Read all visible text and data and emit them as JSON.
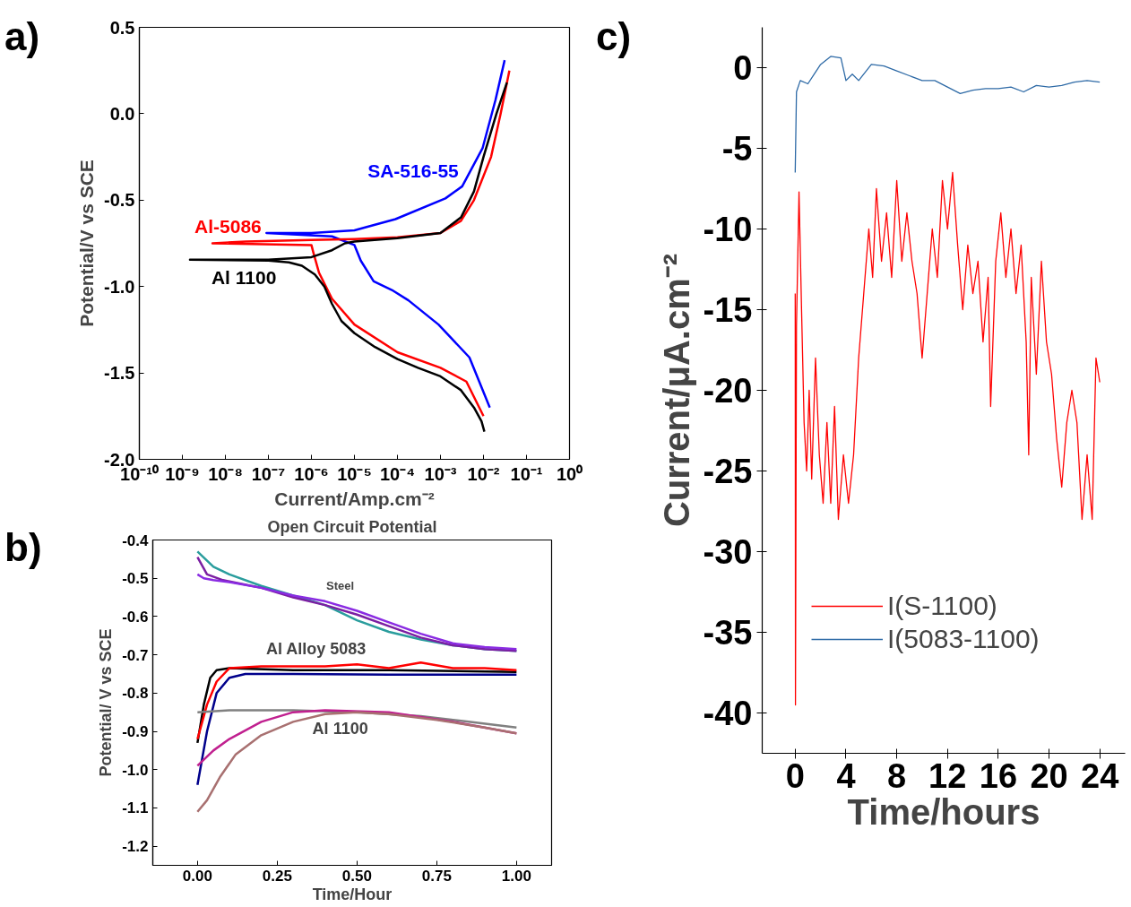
{
  "chart_data": [
    {
      "type": "line",
      "xlabel": "Current/Amp.cm⁻²",
      "ylabel": "Potential/V vs SCE",
      "log": "x",
      "annotations": [
        "a)"
      ],
      "xlim": [
        1e-10,
        1
      ],
      "ylim": [
        -2.0,
        0.5
      ],
      "xticks": [
        {
          "value": 1e-10,
          "label": "10⁻¹⁰"
        },
        {
          "value": 1e-09,
          "label": "10⁻⁹"
        },
        {
          "value": 1e-08,
          "label": "10⁻⁸"
        },
        {
          "value": 1e-07,
          "label": "10⁻⁷"
        },
        {
          "value": 1e-06,
          "label": "10⁻⁶"
        },
        {
          "value": 1e-05,
          "label": "10⁻⁵"
        },
        {
          "value": 0.0001,
          "label": "10⁻⁴"
        },
        {
          "value": 0.001,
          "label": "10⁻³"
        },
        {
          "value": 0.01,
          "label": "10⁻²"
        },
        {
          "value": 0.1,
          "label": "10⁻¹"
        },
        {
          "value": 1,
          "label": "10⁰"
        }
      ],
      "yticks": [
        {
          "value": 0.5,
          "label": "0.5"
        },
        {
          "value": 0.0,
          "label": "0.0"
        },
        {
          "value": -0.5,
          "label": "-0.5"
        },
        {
          "value": -1.0,
          "label": "-1.0"
        },
        {
          "value": -1.5,
          "label": "-1.5"
        },
        {
          "value": -2.0,
          "label": "-2.0"
        }
      ],
      "series": [
        {
          "name": "SA-516-55",
          "color": "#0000ff",
          "x": [
            0.014,
            0.0047,
            0.0009,
            0.00018,
            7.4e-05,
            2.8e-05,
            1.4e-05,
            1e-05,
            3e-06,
            9e-08,
            1e-06,
            1e-05,
            9e-05,
            0.0013,
            0.0032,
            0.0095,
            0.019,
            0.031
          ],
          "values": [
            -1.7,
            -1.41,
            -1.22,
            -1.08,
            -1.02,
            -0.97,
            -0.85,
            -0.76,
            -0.71,
            -0.69,
            -0.69,
            -0.675,
            -0.61,
            -0.49,
            -0.42,
            -0.2,
            0.08,
            0.31
          ]
        },
        {
          "name": "Al-5086",
          "color": "#ff0000",
          "x": [
            0.01,
            0.004,
            0.001,
            0.0001,
            1e-05,
            3e-06,
            1.5e-06,
            1.1e-06,
            1e-06,
            5e-09,
            3e-08,
            1e-06,
            1e-05,
            0.0001,
            0.001,
            0.003,
            0.006,
            0.015,
            0.025,
            0.04
          ],
          "values": [
            -1.75,
            -1.55,
            -1.47,
            -1.38,
            -1.22,
            -1.07,
            -0.92,
            -0.8,
            -0.76,
            -0.75,
            -0.74,
            -0.73,
            -0.725,
            -0.715,
            -0.69,
            -0.62,
            -0.5,
            -0.25,
            0.0,
            0.25
          ]
        },
        {
          "name": "Al 1100",
          "color": "#000000",
          "x": [
            0.0105,
            0.009,
            0.006,
            0.003,
            0.001,
            0.0003,
            0.0001,
            3e-05,
            1e-05,
            5e-06,
            3e-06,
            2e-06,
            1.2e-06,
            6e-07,
            3e-07,
            1e-07,
            1.5e-09,
            1e-07,
            1e-06,
            3e-06,
            6e-06,
            1e-05,
            0.0001,
            0.001,
            0.003,
            0.006,
            0.01,
            0.02,
            0.035
          ],
          "values": [
            -1.84,
            -1.78,
            -1.7,
            -1.6,
            -1.52,
            -1.47,
            -1.42,
            -1.35,
            -1.27,
            -1.2,
            -1.1,
            -1.0,
            -0.93,
            -0.88,
            -0.86,
            -0.85,
            -0.845,
            -0.845,
            -0.83,
            -0.79,
            -0.75,
            -0.74,
            -0.72,
            -0.69,
            -0.6,
            -0.45,
            -0.25,
            0.0,
            0.18
          ]
        }
      ]
    },
    {
      "type": "line",
      "title": "Open Circuit Potential",
      "xlabel": "Time/Hour",
      "ylabel": "Potential/ V vs SCE",
      "annotations": [
        "b)",
        "Steel",
        "Al Alloy 5083",
        "Al 1100"
      ],
      "xlim": [
        -0.14,
        1.11
      ],
      "ylim": [
        -1.25,
        -0.4
      ],
      "xticks": [
        {
          "value": 0,
          "label": "0.00"
        },
        {
          "value": 0.25,
          "label": "0.25"
        },
        {
          "value": 0.5,
          "label": "0.50"
        },
        {
          "value": 0.75,
          "label": "0.75"
        },
        {
          "value": 1,
          "label": "1.00"
        }
      ],
      "yticks": [
        -0.4,
        -0.5,
        -0.6,
        -0.7,
        -0.8,
        -0.9,
        {
          "value": -1.0,
          "label": "-1.0"
        },
        -1.1,
        -1.2
      ],
      "series": [
        {
          "color": "#2a9d9d",
          "x": [
            0,
            0.05,
            0.1,
            0.2,
            0.3,
            0.4,
            0.5,
            0.6,
            0.7,
            0.8,
            0.9,
            1.0
          ],
          "values": [
            -0.43,
            -0.47,
            -0.49,
            -0.52,
            -0.545,
            -0.57,
            -0.61,
            -0.64,
            -0.66,
            -0.675,
            -0.685,
            -0.69
          ]
        },
        {
          "color": "#7b1fa2",
          "x": [
            0,
            0.03,
            0.08,
            0.2,
            0.3,
            0.4,
            0.5,
            0.6,
            0.7,
            0.8,
            0.9,
            1.0
          ],
          "values": [
            -0.445,
            -0.49,
            -0.505,
            -0.525,
            -0.55,
            -0.57,
            -0.595,
            -0.625,
            -0.655,
            -0.675,
            -0.685,
            -0.69
          ]
        },
        {
          "color": "#8a2be2",
          "x": [
            0,
            0.02,
            0.05,
            0.1,
            0.2,
            0.3,
            0.4,
            0.5,
            0.6,
            0.7,
            0.8,
            0.9,
            1.0
          ],
          "values": [
            -0.49,
            -0.5,
            -0.505,
            -0.51,
            -0.525,
            -0.545,
            -0.56,
            -0.585,
            -0.615,
            -0.645,
            -0.67,
            -0.68,
            -0.685
          ]
        },
        {
          "color": "#000000",
          "x": [
            0,
            0.02,
            0.04,
            0.06,
            0.1,
            0.3,
            0.6,
            1.0
          ],
          "values": [
            -0.93,
            -0.83,
            -0.76,
            -0.74,
            -0.735,
            -0.74,
            -0.74,
            -0.745
          ]
        },
        {
          "color": "#ff0000",
          "x": [
            0,
            0.03,
            0.06,
            0.1,
            0.2,
            0.4,
            0.5,
            0.6,
            0.7,
            0.8,
            0.9,
            1.0
          ],
          "values": [
            -0.92,
            -0.83,
            -0.77,
            -0.735,
            -0.73,
            -0.73,
            -0.725,
            -0.735,
            -0.72,
            -0.735,
            -0.735,
            -0.74
          ]
        },
        {
          "color": "#00008b",
          "x": [
            0,
            0.03,
            0.06,
            0.1,
            0.15,
            0.3,
            0.6,
            1.0
          ],
          "values": [
            -1.04,
            -0.9,
            -0.8,
            -0.76,
            -0.75,
            -0.75,
            -0.752,
            -0.752
          ]
        },
        {
          "color": "#808080",
          "x": [
            0,
            0.1,
            0.3,
            0.5,
            0.7,
            0.85,
            1.0
          ],
          "values": [
            -0.85,
            -0.845,
            -0.845,
            -0.85,
            -0.86,
            -0.875,
            -0.89
          ]
        },
        {
          "color": "#c0208f",
          "x": [
            0,
            0.05,
            0.1,
            0.2,
            0.3,
            0.4,
            0.6,
            0.8,
            1.0
          ],
          "values": [
            -0.99,
            -0.95,
            -0.92,
            -0.875,
            -0.85,
            -0.845,
            -0.85,
            -0.875,
            -0.905
          ]
        },
        {
          "color": "#a87070",
          "x": [
            0,
            0.03,
            0.07,
            0.12,
            0.2,
            0.3,
            0.4,
            0.5,
            0.6,
            0.75,
            0.9,
            1.0
          ],
          "values": [
            -1.11,
            -1.08,
            -1.02,
            -0.96,
            -0.91,
            -0.875,
            -0.855,
            -0.85,
            -0.855,
            -0.87,
            -0.89,
            -0.905
          ]
        }
      ]
    },
    {
      "type": "line",
      "xlabel": "Time/hours",
      "ylabel": "Current/μA.cm⁻²",
      "annotations": [
        "c)"
      ],
      "legend": "bottom left",
      "xlim": [
        -2.6,
        26
      ],
      "ylim": [
        -42.5,
        2.5
      ],
      "xticks": [
        0,
        4,
        8,
        12,
        16,
        20,
        24
      ],
      "yticks": [
        0,
        -5,
        -10,
        -15,
        -20,
        -25,
        -30,
        -35,
        -40
      ],
      "series": [
        {
          "name": "I(S-1100)",
          "color": "#ff0000",
          "x": [
            0,
            0.02,
            0.1,
            0.3,
            0.5,
            0.7,
            0.9,
            1.1,
            1.3,
            1.6,
            1.9,
            2.2,
            2.5,
            2.8,
            3.1,
            3.4,
            3.8,
            4.2,
            4.6,
            5.0,
            5.4,
            5.8,
            6.1,
            6.4,
            6.8,
            7.2,
            7.6,
            8.0,
            8.4,
            8.8,
            9.2,
            9.6,
            10.0,
            10.4,
            10.8,
            11.2,
            11.6,
            12.0,
            12.4,
            12.8,
            13.2,
            13.6,
            14.0,
            14.4,
            14.8,
            15.2,
            15.4,
            15.8,
            16.2,
            16.6,
            17.0,
            17.4,
            17.8,
            18.2,
            18.4,
            18.6,
            19.0,
            19.4,
            19.8,
            20.2,
            20.6,
            21.0,
            21.4,
            21.8,
            22.2,
            22.6,
            23.0,
            23.4,
            23.7,
            24.0
          ],
          "values": [
            -14,
            -39.5,
            -16,
            -7.7,
            -15,
            -22,
            -25,
            -20,
            -25.5,
            -18,
            -24,
            -27,
            -22,
            -27,
            -21,
            -28,
            -24,
            -27,
            -24,
            -18,
            -14,
            -10,
            -13,
            -7.5,
            -12,
            -9,
            -13,
            -7,
            -12,
            -9,
            -12,
            -14,
            -18,
            -14,
            -10,
            -13,
            -7,
            -10,
            -6.5,
            -11,
            -15,
            -11,
            -14,
            -12,
            -17,
            -13,
            -21,
            -12,
            -9,
            -13,
            -10,
            -14,
            -11,
            -17,
            -24,
            -13,
            -19,
            -12,
            -17,
            -19,
            -23,
            -26,
            -22,
            -20,
            -22,
            -28,
            -24,
            -28,
            -18,
            -19.5
          ]
        },
        {
          "name": "I(5083-1100)",
          "color": "#2e6aa6",
          "x": [
            0,
            0.1,
            0.4,
            1,
            1.5,
            2,
            2.8,
            3.6,
            4.0,
            4.5,
            5,
            6,
            7,
            8,
            9,
            10,
            11,
            12,
            13,
            14,
            15,
            16,
            17,
            18,
            19,
            20,
            21,
            22,
            23,
            24
          ],
          "values": [
            -6.5,
            -1.5,
            -0.8,
            -1.0,
            -0.4,
            0.2,
            0.7,
            0.6,
            -0.8,
            -0.4,
            -0.8,
            0.2,
            0.1,
            -0.2,
            -0.5,
            -0.8,
            -0.8,
            -1.2,
            -1.6,
            -1.4,
            -1.3,
            -1.3,
            -1.2,
            -1.5,
            -1.1,
            -1.2,
            -1.1,
            -0.9,
            -0.8,
            -0.9
          ]
        }
      ]
    }
  ]
}
